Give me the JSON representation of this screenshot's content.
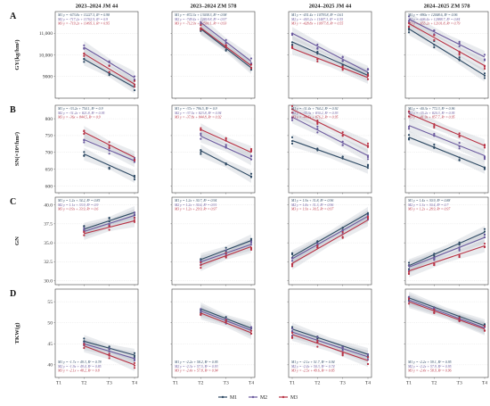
{
  "chart_data": {
    "type": "line",
    "panels_description": "4x4 facet of regression lines with CI bands and jittered points",
    "columns": [
      "2023–2024 JM 44",
      "2023–2024 ZM 578",
      "2024–2025 JM 44",
      "2024–2025 ZM 578"
    ],
    "x_categories": [
      "T1",
      "T2",
      "T3",
      "T4"
    ],
    "legend": [
      "M1",
      "M2",
      "M3"
    ],
    "colors": {
      "M1": "#2e4a64",
      "M2": "#6b5a9e",
      "M3": "#b83244"
    },
    "rows": [
      {
        "letter": "A",
        "ylabel": "GY(kg/hm²)",
        "ylim": [
          8000,
          12000
        ],
        "yticks": [
          9000,
          10000,
          11000
        ],
        "ytick_labels": [
          "9000",
          "10,000",
          "11,000"
        ],
        "panels": [
          {
            "start": 2,
            "fits": [
              [
                9800,
                8500
              ],
              [
                10350,
                8950
              ],
              [
                10050,
                8650
              ]
            ],
            "equations": [
              "M1  y = -673.8x + 11227.3, R² = 0.98",
              "M2  y = -717.2x + 11762.9, R² = 0.9",
              "M3  y = -719.2x + 11495.3, R² = 0.95"
            ]
          },
          {
            "start": 2,
            "fits": [
              [
                11200,
                9400
              ],
              [
                11500,
                9700
              ],
              [
                11250,
                9500
              ]
            ],
            "equations": [
              "M1  y = -872.3x + 13038.3, R² = 0.98",
              "M2  y = -749.4x + 12818.8, R² = 0.97",
              "M3  y = -712.9x + 12590.1, R² = 0.93"
            ]
          },
          {
            "start": 1,
            "fits": [
              [
                10600,
                9050
              ],
              [
                11000,
                9200
              ],
              [
                10300,
                8950
              ]
            ],
            "equations": [
              "M1  y = -431.4x + 10793.8, R² = 0.61",
              "M2  y = -403.2x + 11487.3, R² = 0.55",
              "M3  y = -428.8x + 10977.8, R² = 0.55"
            ]
          },
          {
            "start": 1,
            "fits": [
              [
                11200,
                9050
              ],
              [
                11650,
                9900
              ],
              [
                11450,
                9500
              ]
            ],
            "equations": [
              "M1  y = -890x + 12008.6, R² = 0.96",
              "M2  y = -606.4x + 12888.7, R² = 0.84",
              "M3  y = -655.2x + 12101.8, R² = 0.79"
            ]
          }
        ]
      },
      {
        "letter": "B",
        "ylabel": "SN(×10⁴/hm²)",
        "ylim": [
          580,
          840
        ],
        "yticks": [
          600,
          650,
          700,
          750,
          800
        ],
        "ytick_labels": [
          "600",
          "650",
          "700",
          "750",
          "800"
        ],
        "panels": [
          {
            "start": 2,
            "fits": [
              [
                695,
                628
              ],
              [
                738,
                675
              ],
              [
                760,
                685
              ]
            ],
            "equations": [
              "M1  y = -33.2x + 754.1, R² = 0.9",
              "M2  y = -31.2x + 821.8, R² = 0.95",
              "M3  y = -36x + 844.5, R² = 0.9"
            ]
          },
          {
            "start": 2,
            "fits": [
              [
                705,
                628
              ],
              [
                748,
                680
              ],
              [
                768,
                700
              ]
            ],
            "equations": [
              "M1  y = -37x + 796.5, R² = 0.9",
              "M2  y = -37.5x + 823.8, R² = 0.94",
              "M3  y = -37.8x + 844.8, R² = 0.92"
            ]
          },
          {
            "start": 1,
            "fits": [
              [
                735,
                655
              ],
              [
                805,
                690
              ],
              [
                828,
                718
              ]
            ],
            "equations": [
              "M1  y = -31.4x + 764.2, R² = 0.92",
              "M2  y = -35.3x + 830.2, R² = 0.93",
              "M3  y = -44.5x + 876.2, R² = 0.95"
            ]
          },
          {
            "start": 1,
            "fits": [
              [
                745,
                655
              ],
              [
                780,
                690
              ],
              [
                815,
                720
              ]
            ],
            "equations": [
              "M1  y = -40.3x + 772.3, R² = 0.96",
              "M2  y = -35.2x + 820.3, R² = 0.95",
              "M3  y = -41.9x + 857.7, R² = 0.95"
            ]
          }
        ]
      },
      {
        "letter": "C",
        "ylabel": "GN",
        "ylim": [
          29.5,
          41
        ],
        "yticks": [
          30.0,
          32.5,
          35.0,
          37.5,
          40.0
        ],
        "ytick_labels": [
          "30.0",
          "32.5",
          "35.0",
          "37.5",
          "40.0"
        ],
        "panels": [
          {
            "start": 2,
            "fits": [
              [
                36.8,
                39.0
              ],
              [
                36.5,
                38.6
              ],
              [
                36.2,
                37.9
              ]
            ],
            "equations": [
              "M1  y = 1.2x + 34.2, R² = 0.85",
              "M2  y = 1.1x + 33.9, R² = 0.9",
              "M3  y = 0.9x + 33.9, R² = 0.6"
            ]
          },
          {
            "start": 2,
            "fits": [
              [
                32.8,
                35.3
              ],
              [
                32.5,
                34.8
              ],
              [
                32.1,
                34.5
              ]
            ],
            "equations": [
              "M1  y = 1.2x + 30.7, R² = 0.94",
              "M2  y = 1.2x + 30.4, R² = 0.91",
              "M3  y = 1.2x + 29.9, R² = 0.97"
            ]
          },
          {
            "start": 1,
            "fits": [
              [
                33.2,
                38.9
              ],
              [
                32.9,
                38.5
              ],
              [
                32.3,
                38.0
              ]
            ],
            "equations": [
              "M1  y = 1.9x + 31.8, R² = 0.96",
              "M2  y = 1.8x + 31.3, R² = 0.96",
              "M3  y = 1.9x + 30.5, R² = 0.97"
            ]
          },
          {
            "start": 1,
            "fits": [
              [
                32.0,
                36.4
              ],
              [
                31.8,
                35.7
              ],
              [
                31.3,
                34.6
              ]
            ],
            "equations": [
              "M1  y = 1.4x + 30.9, R² = 0.88",
              "M2  y = 1.3x + 30.4, R² = 0.7",
              "M3  y = 1.2x + 28.9, R² = 0.97"
            ]
          }
        ]
      },
      {
        "letter": "D",
        "ylabel": "TKW(g)",
        "ylim": [
          37,
          58
        ],
        "yticks": [
          40,
          45,
          50,
          55
        ],
        "ytick_labels": [
          "40",
          "45",
          "50",
          "55"
        ],
        "panels": [
          {
            "start": 2,
            "fits": [
              [
                45.6,
                42.3
              ],
              [
                45.0,
                41.5
              ],
              [
                44.5,
                40.0
              ]
            ],
            "equations": [
              "M1  y = -1.7x + 49.3, R² = 0.78",
              "M2  y = -1.9x + 49.4, R² = 0.85",
              "M3  y = -2.1x + 48.2, R² = 0.8"
            ]
          },
          {
            "start": 2,
            "fits": [
              [
                53.3,
                48.7
              ],
              [
                52.8,
                48.2
              ],
              [
                52.3,
                47.6
              ]
            ],
            "equations": [
              "M1  y = -2.2x + 58.2, R² = 0.95",
              "M2  y = -2.3x + 57.5, R² = 0.93",
              "M3  y = -2.4x + 57.8, R² = 0.94"
            ]
          },
          {
            "start": 1,
            "fits": [
              [
                48.5,
                42.5
              ],
              [
                47.8,
                41.9
              ],
              [
                47.2,
                41.0
              ]
            ],
            "equations": [
              "M1  y = -2.1x + 51.7, R² = 0.94",
              "M2  y = -2.4x + 50.3, R² = 0.74",
              "M3  y = -2.5x + 49.6, R² = 0.85"
            ]
          },
          {
            "start": 1,
            "fits": [
              [
                55.9,
                49.3
              ],
              [
                55.4,
                48.8
              ],
              [
                55.0,
                48.5
              ]
            ],
            "equations": [
              "M1  y = -2.2x + 59.1, R² = 0.95",
              "M2  y = -2.2x + 57.9, R² = 0.95",
              "M3  y = -2.4x + 58.9, R² = 0.96"
            ]
          }
        ]
      }
    ]
  }
}
